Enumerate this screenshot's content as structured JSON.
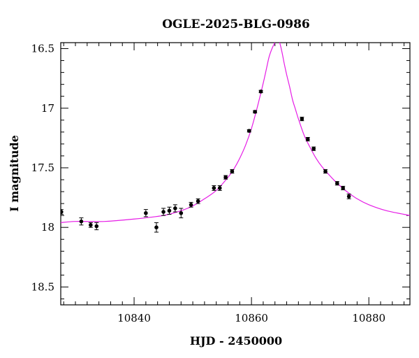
{
  "chart_data": {
    "type": "scatter",
    "title": "OGLE-2025-BLG-0986",
    "xlabel": "HJD - 2450000",
    "ylabel": "I magnitude",
    "xlim": [
      10827.5,
      10887
    ],
    "ylim": [
      18.65,
      16.45
    ],
    "y_inverted": true,
    "grid": false,
    "x_ticks": [
      10840,
      10860,
      10880
    ],
    "x_tick_labels": [
      "10840",
      "10860",
      "10880"
    ],
    "x_minor_step": 2,
    "y_ticks": [
      16.5,
      17,
      17.5,
      18,
      18.5
    ],
    "y_tick_labels": [
      "16.5",
      "17",
      "17.5",
      "18",
      "18.5"
    ],
    "y_minor_step": 0.1,
    "colors": {
      "model": "#e61ce6",
      "points": "#000000",
      "axes": "#000000"
    },
    "series": [
      {
        "kind": "points",
        "x": [
          10827.6,
          10831.0,
          10832.6,
          10833.6,
          10842.0,
          10843.8,
          10845.0,
          10846.0,
          10847.0,
          10848.0,
          10849.7,
          10850.9,
          10853.6,
          10854.6,
          10855.6,
          10856.7,
          10859.6,
          10860.6,
          10861.6,
          10868.6,
          10869.6,
          10870.6,
          10872.6,
          10874.6,
          10875.6,
          10876.6
        ],
        "y": [
          17.87,
          17.95,
          17.98,
          17.99,
          17.88,
          18.0,
          17.87,
          17.86,
          17.84,
          17.88,
          17.81,
          17.78,
          17.67,
          17.67,
          17.58,
          17.53,
          17.19,
          17.03,
          16.86,
          17.09,
          17.26,
          17.34,
          17.53,
          17.63,
          17.67,
          17.74
        ],
        "err": [
          0.02,
          0.03,
          0.02,
          0.03,
          0.03,
          0.04,
          0.03,
          0.03,
          0.03,
          0.04,
          0.02,
          0.02,
          0.02,
          0.02,
          0.015,
          0.015,
          0.01,
          0.01,
          0.01,
          0.015,
          0.015,
          0.015,
          0.015,
          0.015,
          0.015,
          0.02
        ]
      },
      {
        "kind": "model",
        "x": [
          10827.5,
          10830,
          10835,
          10840,
          10845,
          10848,
          10850,
          10852,
          10854,
          10856,
          10857,
          10858,
          10859,
          10860,
          10861,
          10862,
          10862.5,
          10863,
          10863.5,
          10864,
          10864.4,
          10864.8,
          10865.2,
          10865.6,
          10866,
          10866.5,
          10867,
          10867.5,
          10868,
          10869,
          10870,
          10871,
          10872,
          10874,
          10876,
          10878,
          10880,
          10883,
          10887
        ],
        "y": [
          17.96,
          17.95,
          17.95,
          17.93,
          17.9,
          17.86,
          17.82,
          17.76,
          17.69,
          17.58,
          17.51,
          17.42,
          17.31,
          17.17,
          16.99,
          16.79,
          16.68,
          16.57,
          16.5,
          16.45,
          16.43,
          16.45,
          16.53,
          16.63,
          16.72,
          16.82,
          16.93,
          17.01,
          17.09,
          17.23,
          17.33,
          17.42,
          17.49,
          17.6,
          17.69,
          17.76,
          17.81,
          17.86,
          17.9
        ]
      }
    ]
  }
}
